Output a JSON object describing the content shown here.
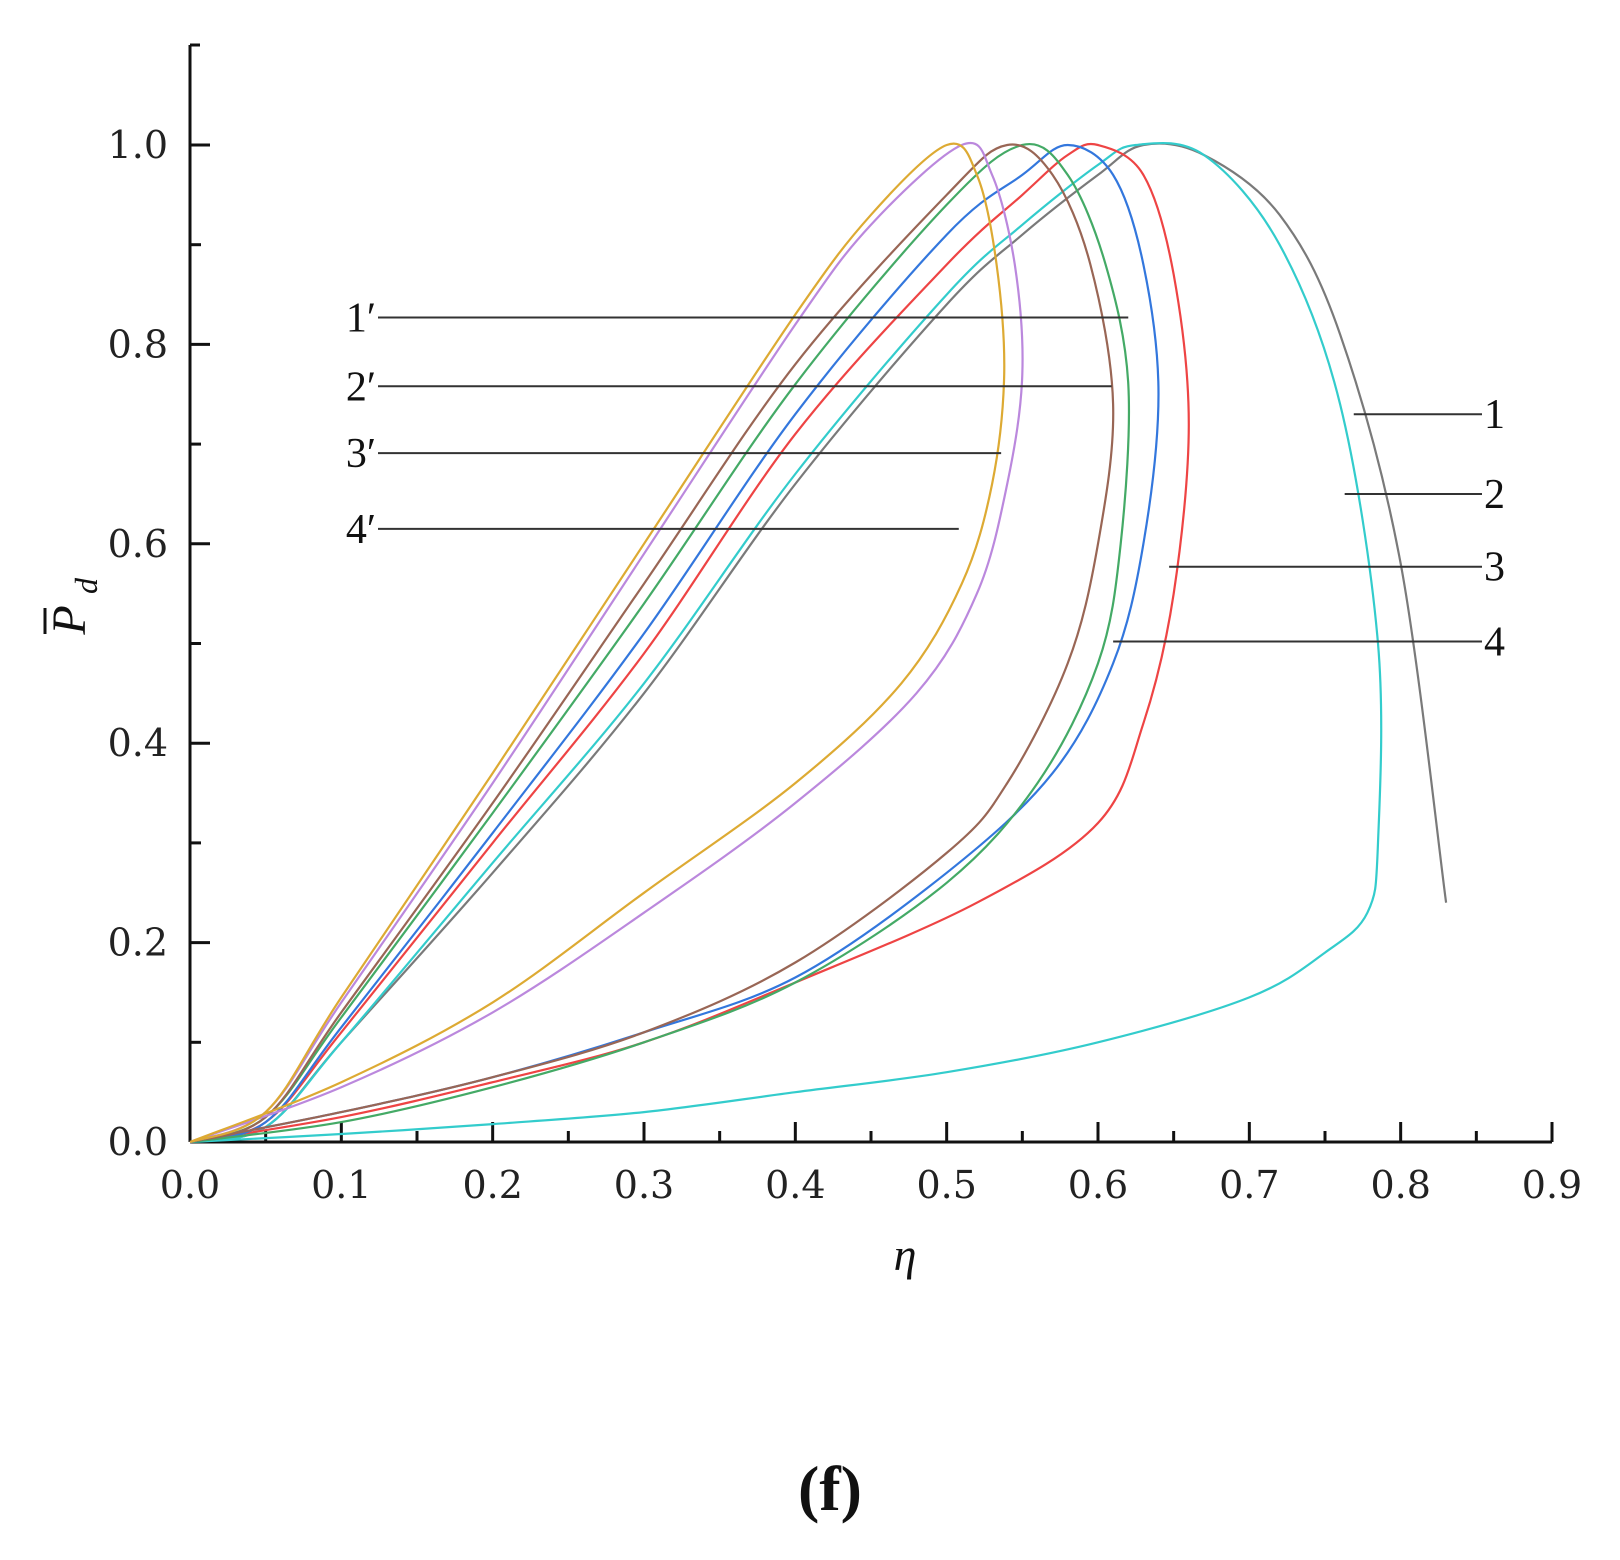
{
  "chart_data": {
    "type": "line",
    "title": "",
    "xlabel": "η",
    "ylabel_main": "P",
    "ylabel_sub": "d",
    "xlim": [
      0,
      0.9
    ],
    "ylim": [
      0,
      1.0
    ],
    "x_ticks": [
      "0.0",
      "0.1",
      "0.2",
      "0.3",
      "0.4",
      "0.5",
      "0.6",
      "0.7",
      "0.8",
      "0.9"
    ],
    "y_ticks": [
      "0.0",
      "0.2",
      "0.4",
      "0.6",
      "0.8",
      "1.0"
    ],
    "grid": false,
    "caption": "(f)",
    "series": [
      {
        "label": "1",
        "color": "#7a7a7a",
        "points": [
          [
            0.0,
            0.0
          ],
          [
            0.05,
            0.015
          ],
          [
            0.1,
            0.1
          ],
          [
            0.2,
            0.27
          ],
          [
            0.3,
            0.45
          ],
          [
            0.4,
            0.66
          ],
          [
            0.5,
            0.84
          ],
          [
            0.55,
            0.91
          ],
          [
            0.6,
            0.97
          ],
          [
            0.63,
            1.0
          ],
          [
            0.67,
            0.99
          ],
          [
            0.72,
            0.93
          ],
          [
            0.76,
            0.81
          ],
          [
            0.8,
            0.58
          ],
          [
            0.83,
            0.24
          ]
        ]
      },
      {
        "label": "2",
        "color": "#33cccc",
        "points": [
          [
            0.0,
            0.0
          ],
          [
            0.05,
            0.015
          ],
          [
            0.1,
            0.1
          ],
          [
            0.2,
            0.28
          ],
          [
            0.3,
            0.46
          ],
          [
            0.4,
            0.67
          ],
          [
            0.5,
            0.85
          ],
          [
            0.55,
            0.92
          ],
          [
            0.6,
            0.98
          ],
          [
            0.625,
            1.0
          ],
          [
            0.67,
            0.99
          ],
          [
            0.72,
            0.9
          ],
          [
            0.76,
            0.74
          ],
          [
            0.785,
            0.5
          ],
          [
            0.785,
            0.3
          ],
          [
            0.778,
            0.23
          ],
          [
            0.75,
            0.19
          ],
          [
            0.7,
            0.145
          ],
          [
            0.6,
            0.1
          ],
          [
            0.5,
            0.07
          ],
          [
            0.4,
            0.05
          ],
          [
            0.3,
            0.03
          ],
          [
            0.2,
            0.018
          ],
          [
            0.1,
            0.008
          ],
          [
            0.0,
            0.0
          ]
        ]
      },
      {
        "label": "3",
        "color": "#ee4444",
        "points": [
          [
            0.0,
            0.0
          ],
          [
            0.05,
            0.02
          ],
          [
            0.1,
            0.11
          ],
          [
            0.2,
            0.3
          ],
          [
            0.3,
            0.49
          ],
          [
            0.4,
            0.71
          ],
          [
            0.5,
            0.88
          ],
          [
            0.55,
            0.95
          ],
          [
            0.58,
            0.99
          ],
          [
            0.6,
            1.0
          ],
          [
            0.63,
            0.97
          ],
          [
            0.65,
            0.87
          ],
          [
            0.66,
            0.72
          ],
          [
            0.65,
            0.55
          ],
          [
            0.63,
            0.42
          ],
          [
            0.6,
            0.32
          ],
          [
            0.52,
            0.24
          ],
          [
            0.4,
            0.16
          ],
          [
            0.3,
            0.1
          ],
          [
            0.2,
            0.06
          ],
          [
            0.1,
            0.025
          ],
          [
            0.0,
            0.0
          ]
        ]
      },
      {
        "label": "4",
        "color": "#3377dd",
        "points": [
          [
            0.0,
            0.0
          ],
          [
            0.05,
            0.02
          ],
          [
            0.1,
            0.115
          ],
          [
            0.2,
            0.31
          ],
          [
            0.3,
            0.51
          ],
          [
            0.4,
            0.73
          ],
          [
            0.5,
            0.91
          ],
          [
            0.55,
            0.97
          ],
          [
            0.58,
            1.0
          ],
          [
            0.61,
            0.97
          ],
          [
            0.63,
            0.88
          ],
          [
            0.64,
            0.75
          ],
          [
            0.63,
            0.6
          ],
          [
            0.61,
            0.48
          ],
          [
            0.57,
            0.37
          ],
          [
            0.5,
            0.27
          ],
          [
            0.4,
            0.165
          ],
          [
            0.3,
            0.11
          ],
          [
            0.2,
            0.065
          ],
          [
            0.1,
            0.03
          ],
          [
            0.0,
            0.0
          ]
        ]
      },
      {
        "label": "1′",
        "color": "#44aa66",
        "points": [
          [
            0.0,
            0.0
          ],
          [
            0.05,
            0.025
          ],
          [
            0.1,
            0.125
          ],
          [
            0.2,
            0.33
          ],
          [
            0.3,
            0.54
          ],
          [
            0.4,
            0.76
          ],
          [
            0.5,
            0.94
          ],
          [
            0.55,
            1.0
          ],
          [
            0.58,
            0.97
          ],
          [
            0.605,
            0.88
          ],
          [
            0.62,
            0.76
          ],
          [
            0.615,
            0.6
          ],
          [
            0.6,
            0.48
          ],
          [
            0.56,
            0.36
          ],
          [
            0.5,
            0.26
          ],
          [
            0.4,
            0.16
          ],
          [
            0.3,
            0.1
          ],
          [
            0.2,
            0.055
          ],
          [
            0.1,
            0.02
          ],
          [
            0.0,
            0.0
          ]
        ]
      },
      {
        "label": "2′",
        "color": "#996655",
        "points": [
          [
            0.0,
            0.0
          ],
          [
            0.05,
            0.025
          ],
          [
            0.1,
            0.13
          ],
          [
            0.2,
            0.34
          ],
          [
            0.3,
            0.56
          ],
          [
            0.4,
            0.78
          ],
          [
            0.5,
            0.95
          ],
          [
            0.54,
            1.0
          ],
          [
            0.57,
            0.97
          ],
          [
            0.595,
            0.88
          ],
          [
            0.61,
            0.74
          ],
          [
            0.6,
            0.6
          ],
          [
            0.58,
            0.48
          ],
          [
            0.54,
            0.36
          ],
          [
            0.5,
            0.29
          ],
          [
            0.4,
            0.18
          ],
          [
            0.3,
            0.11
          ],
          [
            0.2,
            0.065
          ],
          [
            0.1,
            0.03
          ],
          [
            0.0,
            0.0
          ]
        ]
      },
      {
        "label": "3′",
        "color": "#bb88dd",
        "points": [
          [
            0.0,
            0.0
          ],
          [
            0.05,
            0.03
          ],
          [
            0.1,
            0.14
          ],
          [
            0.2,
            0.36
          ],
          [
            0.3,
            0.59
          ],
          [
            0.4,
            0.82
          ],
          [
            0.45,
            0.92
          ],
          [
            0.51,
            1.0
          ],
          [
            0.53,
            0.97
          ],
          [
            0.545,
            0.88
          ],
          [
            0.55,
            0.77
          ],
          [
            0.54,
            0.66
          ],
          [
            0.52,
            0.55
          ],
          [
            0.48,
            0.45
          ],
          [
            0.4,
            0.34
          ],
          [
            0.3,
            0.23
          ],
          [
            0.2,
            0.13
          ],
          [
            0.1,
            0.055
          ],
          [
            0.0,
            0.0
          ]
        ]
      },
      {
        "label": "4′",
        "color": "#ddaa33",
        "points": [
          [
            0.0,
            0.0
          ],
          [
            0.05,
            0.03
          ],
          [
            0.1,
            0.145
          ],
          [
            0.2,
            0.37
          ],
          [
            0.3,
            0.6
          ],
          [
            0.4,
            0.83
          ],
          [
            0.45,
            0.93
          ],
          [
            0.5,
            1.0
          ],
          [
            0.52,
            0.97
          ],
          [
            0.533,
            0.88
          ],
          [
            0.538,
            0.77
          ],
          [
            0.53,
            0.66
          ],
          [
            0.51,
            0.56
          ],
          [
            0.47,
            0.46
          ],
          [
            0.4,
            0.36
          ],
          [
            0.3,
            0.25
          ],
          [
            0.2,
            0.14
          ],
          [
            0.1,
            0.06
          ],
          [
            0.0,
            0.0
          ]
        ]
      }
    ],
    "callouts_right": [
      {
        "label": "1",
        "line_y": 0.73,
        "x_start": 0.769
      },
      {
        "label": "2",
        "line_y": 0.65,
        "x_start": 0.763
      },
      {
        "label": "3",
        "line_y": 0.577,
        "x_start": 0.647
      },
      {
        "label": "4",
        "line_y": 0.502,
        "x_start": 0.61
      }
    ],
    "callouts_left": [
      {
        "label": "1′",
        "line_y": 0.827,
        "x_end": 0.62
      },
      {
        "label": "2′",
        "line_y": 0.758,
        "x_end": 0.609
      },
      {
        "label": "3′",
        "line_y": 0.691,
        "x_end": 0.536
      },
      {
        "label": "4′",
        "line_y": 0.615,
        "x_end": 0.508
      }
    ]
  }
}
